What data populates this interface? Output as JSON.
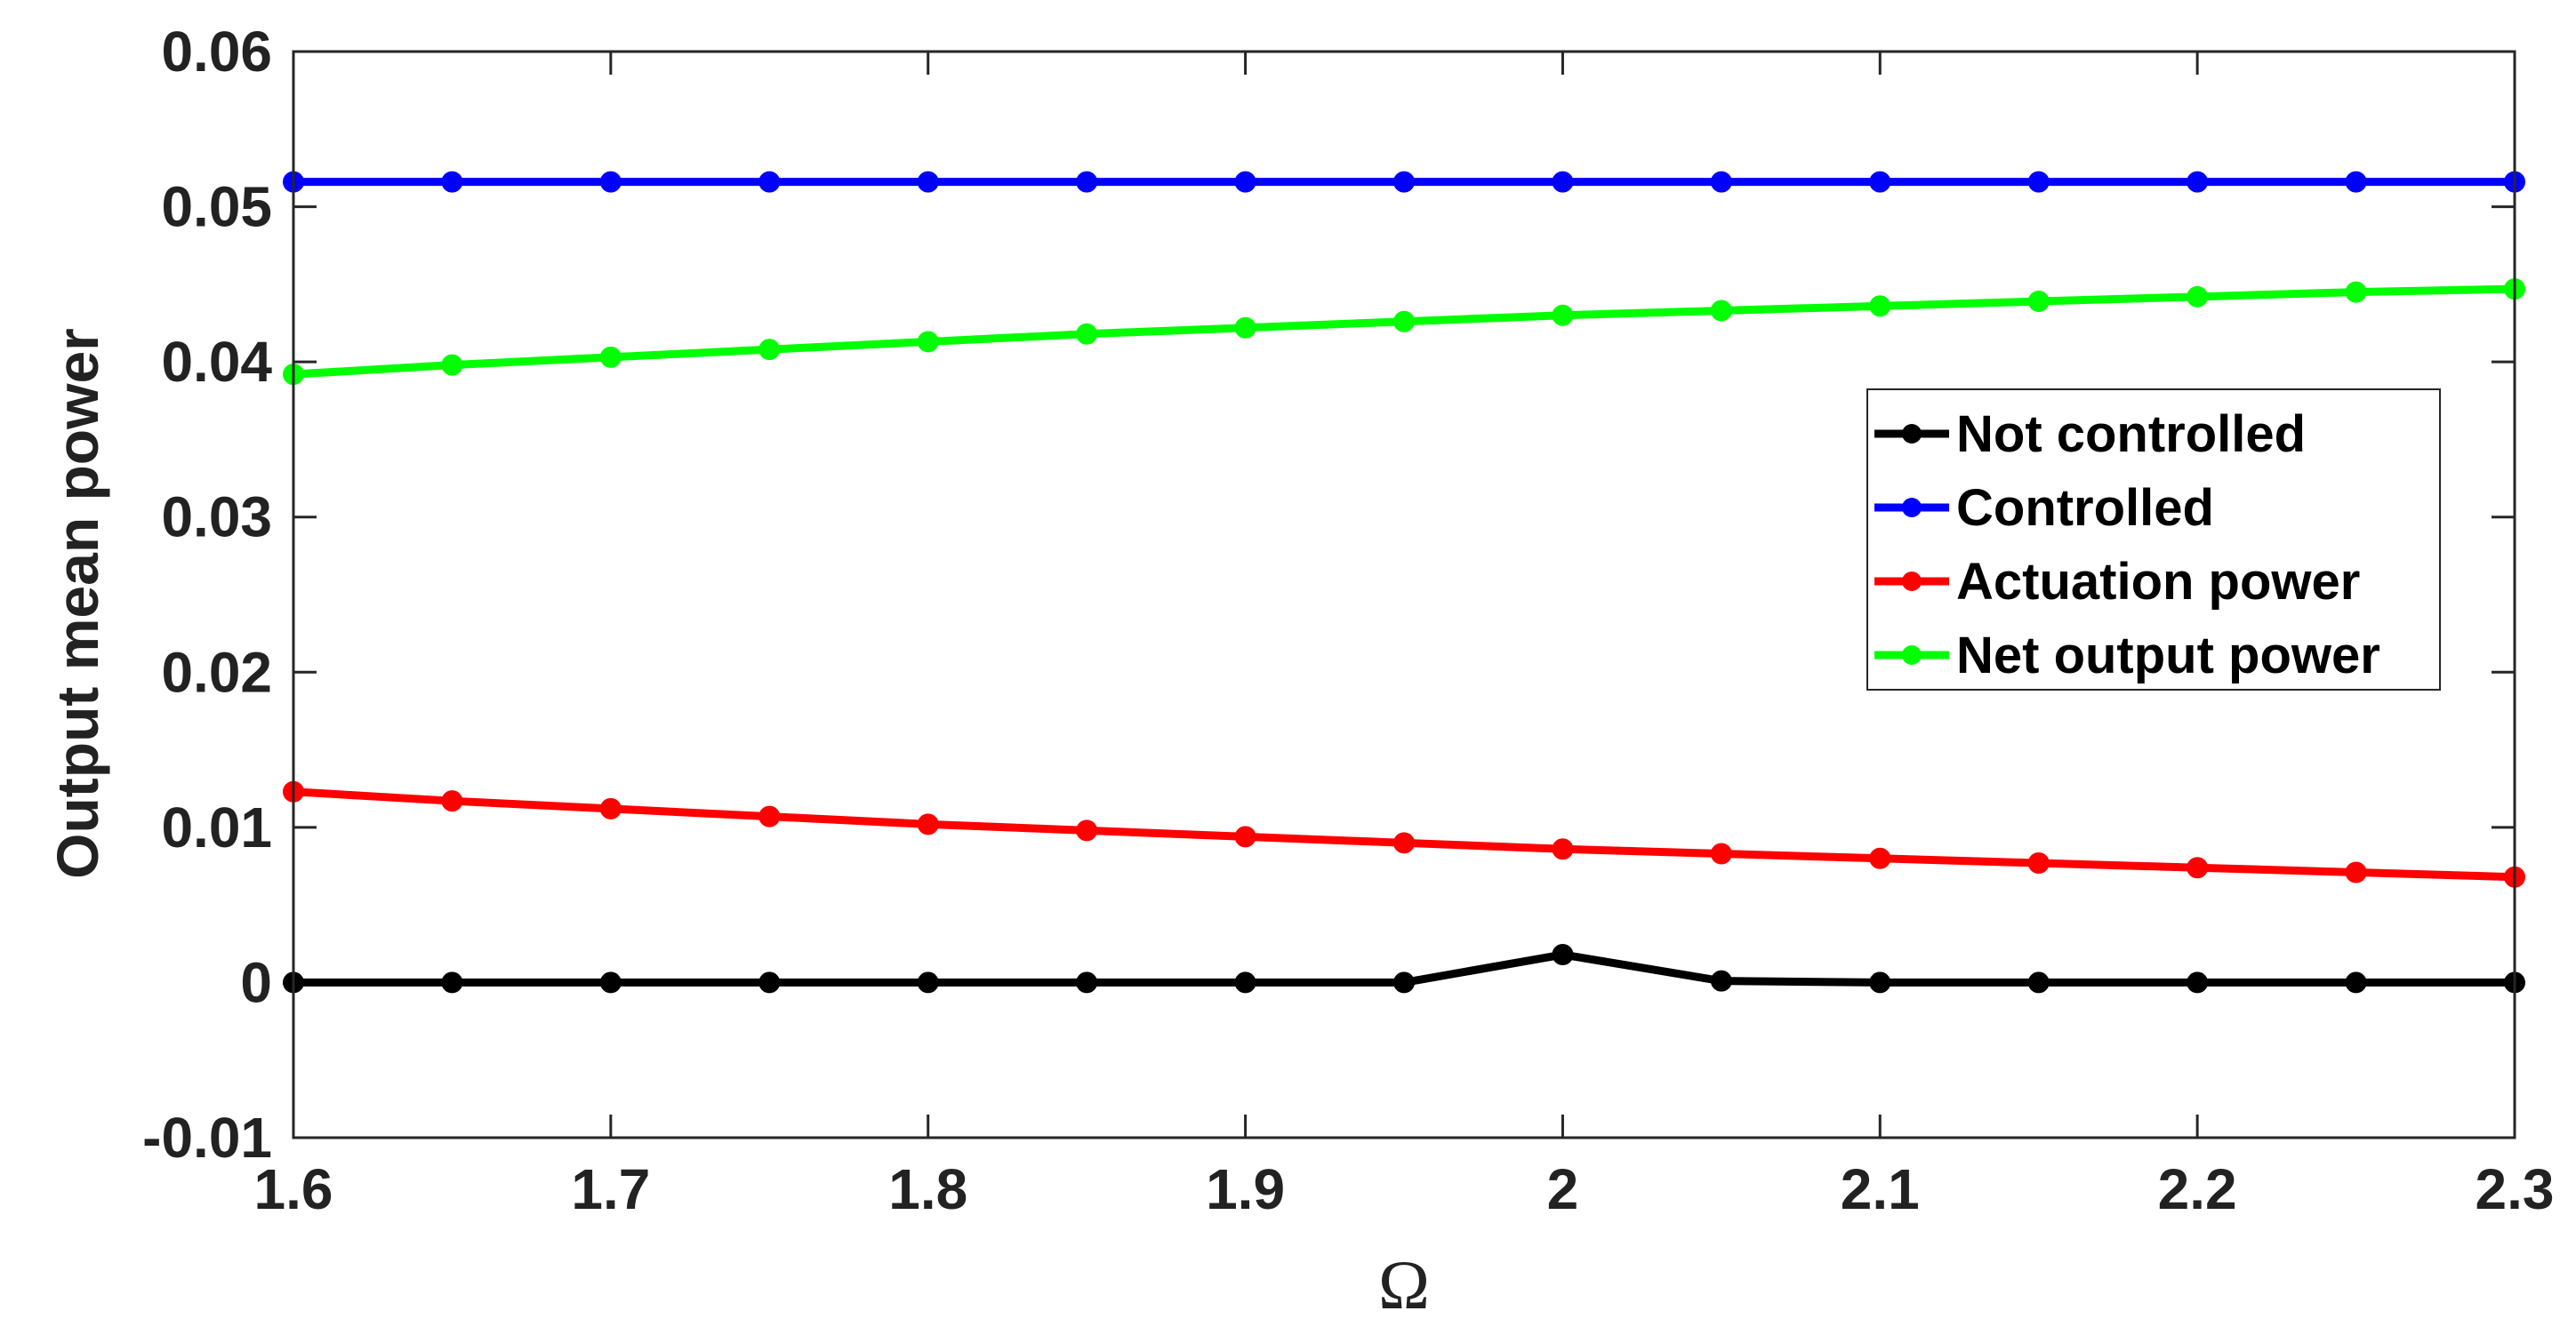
{
  "chart_data": {
    "type": "line",
    "title": "",
    "xlabel": "Ω",
    "ylabel": "Output mean power",
    "xlim": [
      1.6,
      2.3
    ],
    "ylim": [
      -0.01,
      0.06
    ],
    "xticks": [
      1.6,
      1.7,
      1.8,
      1.9,
      2.0,
      2.1,
      2.2,
      2.3
    ],
    "xtick_labels": [
      "1.6",
      "1.7",
      "1.8",
      "1.9",
      "2",
      "2.1",
      "2.2",
      "2.3"
    ],
    "yticks": [
      -0.01,
      0,
      0.01,
      0.02,
      0.03,
      0.04,
      0.05,
      0.06
    ],
    "ytick_labels": [
      "-0.01",
      "0",
      "0.01",
      "0.02",
      "0.03",
      "0.04",
      "0.05",
      "0.06"
    ],
    "grid": false,
    "legend_position": "right",
    "x": [
      1.6,
      1.65,
      1.7,
      1.75,
      1.8,
      1.85,
      1.9,
      1.95,
      2.0,
      2.05,
      2.1,
      2.15,
      2.2,
      2.25,
      2.3
    ],
    "series": [
      {
        "name": "Not controlled",
        "color": "#000000",
        "values": [
          0,
          0,
          0,
          0,
          0,
          0,
          0,
          0,
          0.0018,
          0.0001,
          0,
          0,
          0,
          0,
          0
        ]
      },
      {
        "name": "Controlled",
        "color": "#0000ff",
        "values": [
          0.0516,
          0.0516,
          0.0516,
          0.0516,
          0.0516,
          0.0516,
          0.0516,
          0.0516,
          0.0516,
          0.0516,
          0.0516,
          0.0516,
          0.0516,
          0.0516,
          0.0516
        ]
      },
      {
        "name": "Actuation power",
        "color": "#ff0000",
        "values": [
          0.0123,
          0.0117,
          0.0112,
          0.0107,
          0.0102,
          0.0098,
          0.0094,
          0.009,
          0.0086,
          0.0083,
          0.008,
          0.0077,
          0.0074,
          0.0071,
          0.0068
        ]
      },
      {
        "name": "Net output power",
        "color": "#00ff00",
        "values": [
          0.0392,
          0.0398,
          0.0403,
          0.0408,
          0.0413,
          0.0418,
          0.0422,
          0.0426,
          0.043,
          0.0433,
          0.0436,
          0.0439,
          0.0442,
          0.0445,
          0.0447
        ]
      }
    ]
  }
}
